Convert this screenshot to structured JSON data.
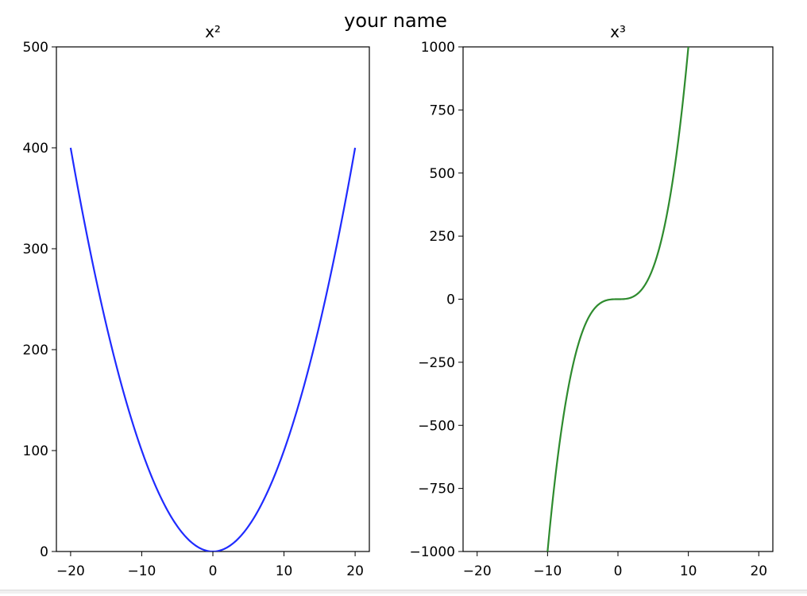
{
  "figure": {
    "suptitle": "your name"
  },
  "chart_data": [
    {
      "type": "line",
      "title": "x²",
      "function": "x^2",
      "xlabel": "",
      "ylabel": "",
      "xlim": [
        -22,
        22
      ],
      "ylim": [
        0,
        500
      ],
      "xticks": [
        -20,
        -10,
        0,
        10,
        20
      ],
      "xtick_labels": [
        "−20",
        "−10",
        "0",
        "10",
        "20"
      ],
      "yticks": [
        0,
        100,
        200,
        300,
        400,
        500
      ],
      "ytick_labels": [
        "0",
        "100",
        "200",
        "300",
        "400",
        "500"
      ],
      "grid": false,
      "series": [
        {
          "color": "#1f2bff",
          "x": [
            -20,
            -18,
            -16,
            -14,
            -12,
            -10,
            -8,
            -6,
            -4,
            -2,
            0,
            2,
            4,
            6,
            8,
            10,
            12,
            14,
            16,
            18,
            20
          ],
          "y": [
            400,
            324,
            256,
            196,
            144,
            100,
            64,
            36,
            16,
            4,
            0,
            4,
            16,
            36,
            64,
            100,
            144,
            196,
            256,
            324,
            400
          ]
        }
      ]
    },
    {
      "type": "line",
      "title": "x³",
      "function": "x^3",
      "xlabel": "",
      "ylabel": "",
      "xlim": [
        -22,
        22
      ],
      "ylim": [
        -1000,
        1000
      ],
      "xticks": [
        -20,
        -10,
        0,
        10,
        20
      ],
      "xtick_labels": [
        "−20",
        "−10",
        "0",
        "10",
        "20"
      ],
      "yticks": [
        -1000,
        -750,
        -500,
        -250,
        0,
        250,
        500,
        750,
        1000
      ],
      "ytick_labels": [
        "−1000",
        "−750",
        "−500",
        "−250",
        "0",
        "250",
        "500",
        "750",
        "1000"
      ],
      "grid": false,
      "series": [
        {
          "color": "#2e8b2e",
          "x": [
            -10,
            -9,
            -8,
            -7,
            -6,
            -5,
            -4,
            -3,
            -2,
            -1,
            0,
            1,
            2,
            3,
            4,
            5,
            6,
            7,
            8,
            9,
            10
          ],
          "y": [
            -1000,
            -729,
            -512,
            -343,
            -216,
            -125,
            -64,
            -27,
            -8,
            -1,
            0,
            1,
            8,
            27,
            64,
            125,
            216,
            343,
            512,
            729,
            1000
          ]
        }
      ]
    }
  ]
}
